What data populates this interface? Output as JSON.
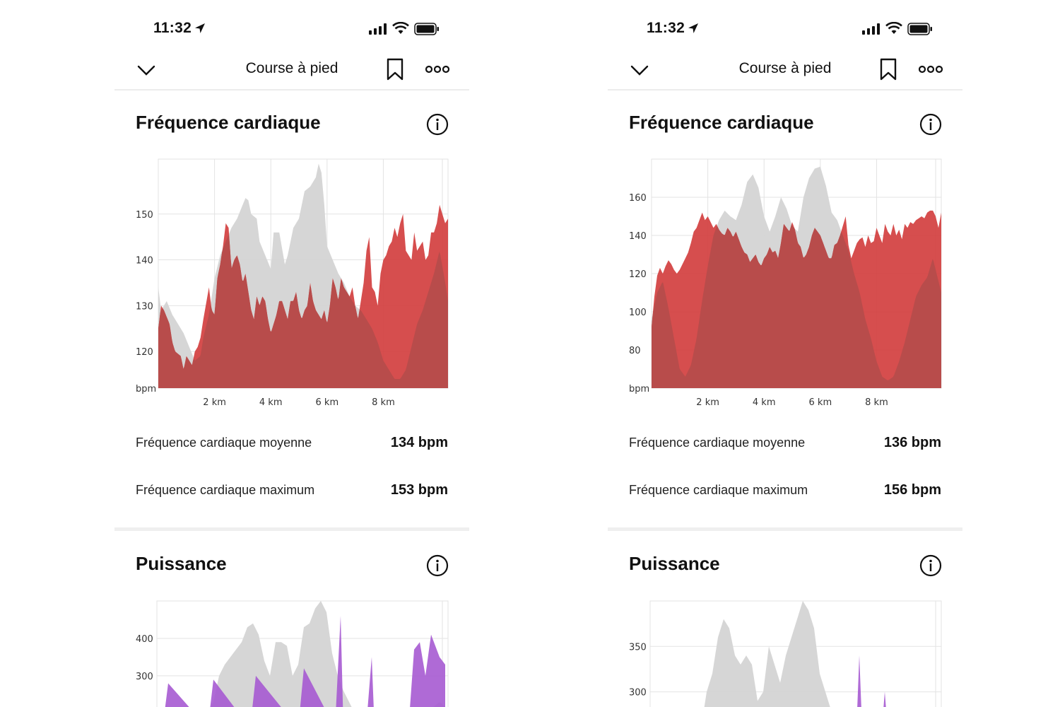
{
  "colors": {
    "accent_red": "#d33f3f",
    "dark_red": "#b84c4b",
    "comparison_gray": "#d4d4d4",
    "power_purple": "#a65ad1",
    "grid": "#e3e3e3"
  },
  "screens": [
    {
      "status": {
        "time": "11:32"
      },
      "nav": {
        "title": "Course à pied",
        "back_icon": "chevron-down-icon",
        "bookmark_icon": "bookmark-icon",
        "more_icon": "more-icon"
      },
      "heart_rate": {
        "title": "Fréquence cardiaque",
        "avg_label": "Fréquence cardiaque moyenne",
        "avg_value": "134 bpm",
        "max_label": "Fréquence cardiaque maximum",
        "max_value": "153 bpm"
      },
      "power": {
        "title": "Puissance"
      }
    },
    {
      "status": {
        "time": "11:32"
      },
      "nav": {
        "title": "Course à pied",
        "back_icon": "chevron-down-icon",
        "bookmark_icon": "bookmark-icon",
        "more_icon": "more-icon"
      },
      "heart_rate": {
        "title": "Fréquence cardiaque",
        "avg_label": "Fréquence cardiaque moyenne",
        "avg_value": "136 bpm",
        "max_label": "Fréquence cardiaque maximum",
        "max_value": "156 bpm"
      },
      "power": {
        "title": "Puissance"
      }
    }
  ],
  "chart_data": [
    {
      "type": "area",
      "xlim": [
        0,
        10.3
      ],
      "ylim": [
        112,
        162
      ],
      "y_ticks": [
        150,
        140,
        130,
        120
      ],
      "y_unit_label": "bpm",
      "x_ticks": [
        2,
        4,
        6,
        8
      ],
      "x_tick_labels": [
        "2 km",
        "4 km",
        "6 km",
        "8 km"
      ],
      "series": [
        {
          "role": "comparison",
          "x": [
            0,
            0.1,
            0.3,
            0.5,
            0.7,
            0.9,
            1.1,
            1.3,
            1.5,
            1.6,
            1.8,
            2.0,
            2.2,
            2.4,
            2.6,
            2.8,
            3.0,
            3.1,
            3.2,
            3.3,
            3.5,
            3.6,
            3.8,
            4.0,
            4.1,
            4.3,
            4.5,
            4.6,
            4.8,
            5.0,
            5.2,
            5.4,
            5.6,
            5.7,
            5.8,
            5.9,
            6.0,
            6.2,
            6.4,
            6.6,
            6.8,
            7.0,
            7.2,
            7.4,
            7.6,
            7.8,
            8.0,
            8.2,
            8.4,
            8.6,
            8.8,
            9.0,
            9.2,
            9.4,
            9.6,
            9.8,
            10.0,
            10.2,
            10.3
          ],
          "values": [
            134,
            129,
            131,
            128,
            126,
            124,
            121,
            118,
            119,
            123,
            128,
            136,
            141,
            144,
            147,
            149,
            152,
            153.5,
            153,
            150,
            149,
            144,
            141,
            138,
            146,
            146,
            139,
            141,
            147,
            149,
            155,
            156,
            158,
            161,
            159,
            152,
            143,
            140,
            137,
            135,
            132,
            130,
            129,
            127,
            125,
            122,
            118,
            116,
            114,
            114,
            116,
            121,
            126,
            129,
            133,
            137,
            142,
            135,
            131
          ]
        },
        {
          "role": "current",
          "x": [
            0,
            0.1,
            0.2,
            0.4,
            0.5,
            0.6,
            0.8,
            0.9,
            1.0,
            1.2,
            1.3,
            1.4,
            1.5,
            1.6,
            1.8,
            1.9,
            2.0,
            2.1,
            2.2,
            2.3,
            2.4,
            2.5,
            2.6,
            2.7,
            2.8,
            2.9,
            3.0,
            3.1,
            3.2,
            3.3,
            3.4,
            3.5,
            3.6,
            3.7,
            3.8,
            3.9,
            4.0,
            4.1,
            4.2,
            4.3,
            4.4,
            4.5,
            4.6,
            4.7,
            4.8,
            4.9,
            5.0,
            5.1,
            5.2,
            5.3,
            5.4,
            5.5,
            5.6,
            5.7,
            5.8,
            5.9,
            6.0,
            6.1,
            6.2,
            6.3,
            6.4,
            6.5,
            6.6,
            6.7,
            6.8,
            6.9,
            7.0,
            7.1,
            7.2,
            7.3,
            7.4,
            7.5,
            7.6,
            7.7,
            7.8,
            7.9,
            8.0,
            8.1,
            8.2,
            8.3,
            8.4,
            8.5,
            8.6,
            8.7,
            8.8,
            8.9,
            9.0,
            9.1,
            9.2,
            9.3,
            9.4,
            9.5,
            9.6,
            9.7,
            9.8,
            9.9,
            10.0,
            10.1,
            10.2,
            10.3
          ],
          "values": [
            125,
            130,
            129,
            126,
            122,
            120,
            119,
            116,
            119,
            117,
            120,
            121,
            123,
            127,
            134,
            129,
            128,
            136,
            139,
            143,
            148,
            147,
            138,
            140,
            141,
            139,
            135,
            137,
            133,
            129,
            127,
            132,
            130,
            132,
            131,
            127,
            124,
            126,
            128,
            131,
            131,
            129,
            127,
            131,
            131,
            133,
            129,
            127,
            129,
            130,
            135,
            131,
            129,
            128,
            127,
            129,
            126,
            130,
            136,
            134,
            131,
            136,
            134,
            133,
            132,
            134,
            130,
            127,
            131,
            135,
            142,
            145,
            134,
            133,
            130,
            137,
            140,
            141,
            143,
            144,
            147,
            145,
            148,
            150,
            142,
            141,
            140,
            146,
            142,
            143,
            144,
            140,
            141,
            146,
            146,
            148,
            152,
            150,
            148,
            149
          ]
        }
      ]
    },
    {
      "type": "area",
      "xlim": [
        0,
        10.3
      ],
      "ylim": [
        60,
        180
      ],
      "y_ticks": [
        160,
        140,
        120,
        100,
        80
      ],
      "y_unit_label": "bpm",
      "x_ticks": [
        2,
        4,
        6,
        8
      ],
      "x_tick_labels": [
        "2 km",
        "4 km",
        "6 km",
        "8 km"
      ],
      "series": [
        {
          "role": "comparison",
          "x": [
            0,
            0.2,
            0.4,
            0.6,
            0.8,
            1.0,
            1.2,
            1.4,
            1.6,
            1.8,
            2.0,
            2.2,
            2.4,
            2.6,
            2.8,
            3.0,
            3.2,
            3.4,
            3.6,
            3.8,
            4.0,
            4.2,
            4.4,
            4.6,
            4.8,
            5.0,
            5.2,
            5.4,
            5.6,
            5.8,
            6.0,
            6.2,
            6.4,
            6.6,
            6.8,
            7.0,
            7.2,
            7.4,
            7.6,
            7.8,
            8.0,
            8.2,
            8.4,
            8.6,
            8.8,
            9.0,
            9.2,
            9.4,
            9.6,
            9.8,
            10.0,
            10.3
          ],
          "values": [
            96,
            110,
            116,
            102,
            86,
            70,
            66,
            72,
            86,
            106,
            124,
            140,
            148,
            153,
            150,
            148,
            156,
            168,
            172,
            165,
            150,
            142,
            150,
            160,
            154,
            145,
            142,
            160,
            170,
            175,
            176,
            166,
            152,
            148,
            140,
            132,
            120,
            110,
            96,
            86,
            74,
            66,
            64,
            66,
            74,
            84,
            96,
            108,
            114,
            118,
            128,
            110
          ]
        },
        {
          "role": "current",
          "x": [
            0,
            0.1,
            0.2,
            0.3,
            0.4,
            0.5,
            0.6,
            0.7,
            0.8,
            0.9,
            1.0,
            1.1,
            1.2,
            1.3,
            1.4,
            1.5,
            1.6,
            1.7,
            1.8,
            1.9,
            2.0,
            2.1,
            2.2,
            2.3,
            2.4,
            2.5,
            2.6,
            2.7,
            2.8,
            2.9,
            3.0,
            3.1,
            3.2,
            3.3,
            3.4,
            3.5,
            3.6,
            3.7,
            3.8,
            3.9,
            4.0,
            4.1,
            4.2,
            4.3,
            4.4,
            4.5,
            4.6,
            4.7,
            4.8,
            4.9,
            5.0,
            5.1,
            5.2,
            5.3,
            5.4,
            5.5,
            5.6,
            5.7,
            5.8,
            5.9,
            6.0,
            6.1,
            6.2,
            6.3,
            6.4,
            6.5,
            6.6,
            6.7,
            6.8,
            6.9,
            7.0,
            7.1,
            7.2,
            7.3,
            7.4,
            7.5,
            7.6,
            7.7,
            7.8,
            7.9,
            8.0,
            8.1,
            8.2,
            8.3,
            8.4,
            8.5,
            8.6,
            8.7,
            8.8,
            8.9,
            9.0,
            9.1,
            9.2,
            9.3,
            9.4,
            9.5,
            9.6,
            9.7,
            9.8,
            9.9,
            10.0,
            10.1,
            10.2,
            10.3
          ],
          "values": [
            92,
            108,
            119,
            123,
            120,
            124,
            127,
            125,
            122,
            120,
            122,
            125,
            128,
            131,
            136,
            142,
            144,
            148,
            152,
            148,
            150,
            147,
            144,
            146,
            143,
            141,
            140,
            144,
            142,
            139,
            142,
            138,
            134,
            131,
            130,
            126,
            128,
            130,
            126,
            124,
            128,
            130,
            134,
            131,
            132,
            128,
            136,
            146,
            144,
            142,
            147,
            143,
            136,
            134,
            128,
            130,
            134,
            140,
            144,
            142,
            140,
            136,
            132,
            128,
            128,
            135,
            136,
            140,
            145,
            150,
            135,
            128,
            132,
            136,
            138,
            139,
            134,
            140,
            136,
            137,
            144,
            140,
            136,
            146,
            142,
            140,
            146,
            140,
            143,
            138,
            146,
            144,
            147,
            146,
            148,
            149,
            150,
            149,
            152,
            153,
            153,
            150,
            144,
            152
          ]
        }
      ]
    },
    {
      "type": "area",
      "ylim": [
        160,
        500
      ],
      "y_ticks": [
        400,
        300
      ],
      "xlim": [
        0,
        10.3
      ],
      "series": [
        {
          "role": "comparison",
          "x": [
            0,
            0.5,
            1.0,
            1.5,
            2.0,
            2.2,
            2.4,
            2.6,
            2.8,
            3.0,
            3.2,
            3.4,
            3.6,
            3.8,
            4.0,
            4.2,
            4.4,
            4.6,
            4.8,
            5.0,
            5.2,
            5.4,
            5.6,
            5.8,
            6.0,
            6.2,
            6.4,
            6.6,
            6.8,
            7.0,
            8.0,
            9.0,
            10.0,
            10.3
          ],
          "values": [
            160,
            160,
            160,
            160,
            230,
            300,
            330,
            350,
            370,
            390,
            430,
            440,
            410,
            340,
            300,
            390,
            390,
            380,
            300,
            330,
            430,
            440,
            480,
            500,
            470,
            360,
            300,
            260,
            230,
            200,
            170,
            170,
            230,
            210
          ]
        },
        {
          "role": "current",
          "x": [
            0.2,
            0.4,
            1.8,
            2.0,
            3.3,
            3.5,
            5.0,
            5.2,
            6.3,
            6.5,
            6.6,
            7.4,
            7.6,
            7.7,
            8.9,
            9.1,
            9.3,
            9.5,
            9.7,
            10.0,
            10.2
          ],
          "values": [
            160,
            280,
            160,
            290,
            160,
            300,
            160,
            320,
            160,
            460,
            160,
            160,
            350,
            160,
            160,
            370,
            390,
            300,
            410,
            350,
            330
          ]
        }
      ]
    },
    {
      "type": "area",
      "ylim": [
        260,
        400
      ],
      "y_ticks": [
        350,
        300
      ],
      "xlim": [
        0,
        10.3
      ],
      "series": [
        {
          "role": "comparison",
          "x": [
            0,
            1.0,
            1.8,
            2.0,
            2.2,
            2.4,
            2.6,
            2.8,
            3.0,
            3.2,
            3.4,
            3.6,
            3.8,
            4.0,
            4.2,
            4.4,
            4.6,
            4.8,
            5.0,
            5.2,
            5.4,
            5.6,
            5.8,
            6.0,
            6.2,
            6.4,
            6.6,
            7.0,
            8.0,
            9.0,
            10.0,
            10.3
          ],
          "values": [
            260,
            260,
            260,
            300,
            320,
            360,
            380,
            370,
            340,
            330,
            340,
            330,
            290,
            300,
            350,
            330,
            310,
            340,
            360,
            380,
            400,
            390,
            370,
            320,
            300,
            280,
            270,
            260,
            260,
            260,
            280,
            270
          ]
        },
        {
          "role": "current",
          "x": [
            1.8,
            1.85,
            1.9,
            7.3,
            7.4,
            7.5,
            8.2,
            8.3,
            8.4
          ],
          "values": [
            260,
            280,
            260,
            260,
            340,
            260,
            260,
            300,
            260
          ]
        }
      ]
    }
  ]
}
